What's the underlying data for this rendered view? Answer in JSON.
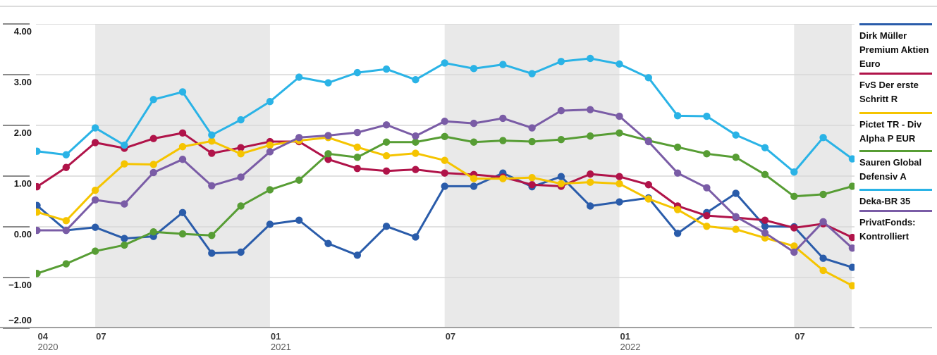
{
  "chart_data": {
    "type": "line",
    "grid": "horizontal",
    "legend_position": "right",
    "ylim": [
      -2,
      4
    ],
    "y_ticks": [
      "4.00",
      "3.00",
      "2.00",
      "1.00",
      "0.00",
      "−1.00",
      "−2.00"
    ],
    "y_tick_values": [
      4,
      3,
      2,
      1,
      0,
      -1,
      -2
    ],
    "x_months": [
      "2020-04",
      "2020-05",
      "2020-06",
      "2020-07",
      "2020-08",
      "2020-09",
      "2020-10",
      "2020-11",
      "2020-12",
      "2021-01",
      "2021-02",
      "2021-03",
      "2021-04",
      "2021-05",
      "2021-06",
      "2021-07",
      "2021-08",
      "2021-09",
      "2021-10",
      "2021-11",
      "2021-12",
      "2022-01",
      "2022-02",
      "2022-03",
      "2022-04",
      "2022-05",
      "2022-06",
      "2022-07",
      "2022-08"
    ],
    "x_ticks": [
      {
        "i": 0,
        "month": "04",
        "year": "2020"
      },
      {
        "i": 2,
        "month": "07",
        "year": ""
      },
      {
        "i": 8,
        "month": "01",
        "year": "2021"
      },
      {
        "i": 14,
        "month": "07",
        "year": ""
      },
      {
        "i": 20,
        "month": "01",
        "year": "2022"
      },
      {
        "i": 26,
        "month": "07",
        "year": ""
      }
    ],
    "shaded_bands": [
      {
        "from_i": 2,
        "to_i": 8,
        "color": "#e9e9e9"
      },
      {
        "from_i": 14,
        "to_i": 20,
        "color": "#e9e9e9"
      },
      {
        "from_i": 26,
        "to_edge": true,
        "color": "#e9e9e9"
      }
    ],
    "series": [
      {
        "name": "Dirk Müller Premium Aktien Euro",
        "legend_lines": [
          "Dirk Müller",
          "Premium Aktien",
          "Euro"
        ],
        "color": "#2a5caa",
        "values": [
          0.42,
          -0.07,
          -0.01,
          -0.23,
          -0.19,
          0.28,
          -0.52,
          -0.5,
          0.05,
          0.13,
          -0.33,
          -0.56,
          0.01,
          -0.2,
          0.8,
          0.8,
          1.06,
          0.79,
          0.99,
          0.41,
          0.49,
          0.57,
          -0.13,
          0.28,
          0.66,
          0.01,
          0.0,
          -0.62,
          -0.8
        ]
      },
      {
        "name": "FvS Der erste Schritt R",
        "legend_lines": [
          "FvS Der erste",
          "Schritt R"
        ],
        "color": "#b01349",
        "values": [
          0.79,
          1.17,
          1.66,
          1.55,
          1.74,
          1.85,
          1.45,
          1.56,
          1.68,
          1.68,
          1.33,
          1.15,
          1.1,
          1.13,
          1.06,
          1.03,
          0.98,
          0.83,
          0.8,
          1.04,
          0.99,
          0.83,
          0.41,
          0.22,
          0.18,
          0.13,
          -0.02,
          0.06,
          -0.21
        ]
      },
      {
        "name": "Pictet TR - Div Alpha P EUR",
        "legend_lines": [
          "Pictet TR - Div",
          "Alpha P EUR"
        ],
        "color": "#f5c400",
        "values": [
          0.29,
          0.12,
          0.72,
          1.24,
          1.23,
          1.58,
          1.69,
          1.44,
          1.61,
          1.7,
          1.76,
          1.57,
          1.4,
          1.45,
          1.31,
          0.95,
          0.95,
          0.97,
          0.85,
          0.88,
          0.85,
          0.55,
          0.34,
          0.01,
          -0.05,
          -0.22,
          -0.38,
          -0.86,
          -1.16
        ]
      },
      {
        "name": "Sauren Global Defensiv A",
        "legend_lines": [
          "Sauren Global",
          "Defensiv A"
        ],
        "color": "#579d34",
        "values": [
          -0.92,
          -0.73,
          -0.48,
          -0.36,
          -0.1,
          -0.14,
          -0.17,
          0.41,
          0.73,
          0.92,
          1.44,
          1.37,
          1.67,
          1.67,
          1.78,
          1.67,
          1.7,
          1.68,
          1.72,
          1.79,
          1.85,
          1.7,
          1.57,
          1.44,
          1.37,
          1.03,
          0.6,
          0.64,
          0.8
        ]
      },
      {
        "name": "Deka-BR 35",
        "legend_lines": [
          "Deka-BR 35"
        ],
        "color": "#2ab3e6",
        "values": [
          1.49,
          1.42,
          1.95,
          1.61,
          2.51,
          2.66,
          1.81,
          2.11,
          2.47,
          2.95,
          2.84,
          3.04,
          3.11,
          2.9,
          3.23,
          3.12,
          3.2,
          3.02,
          3.26,
          3.32,
          3.21,
          2.94,
          2.19,
          2.18,
          1.81,
          1.56,
          1.08,
          1.76,
          1.34
        ]
      },
      {
        "name": "PrivatFonds: Kontrolliert",
        "legend_lines": [
          "PrivatFonds:",
          "Kontrolliert"
        ],
        "color": "#7a5ca6",
        "values": [
          -0.07,
          -0.07,
          0.53,
          0.45,
          1.07,
          1.33,
          0.81,
          0.98,
          1.48,
          1.76,
          1.8,
          1.86,
          2.01,
          1.79,
          2.08,
          2.04,
          2.14,
          1.95,
          2.29,
          2.31,
          2.18,
          1.68,
          1.06,
          0.77,
          0.2,
          -0.12,
          -0.5,
          0.1,
          -0.42
        ]
      }
    ],
    "colors": {
      "gridline": "#d7d7d7",
      "band": "#e9e9e9",
      "axis": "#a0a0a0",
      "tick": "#8a8a8a",
      "top_rule": "#dcdcdc"
    }
  }
}
